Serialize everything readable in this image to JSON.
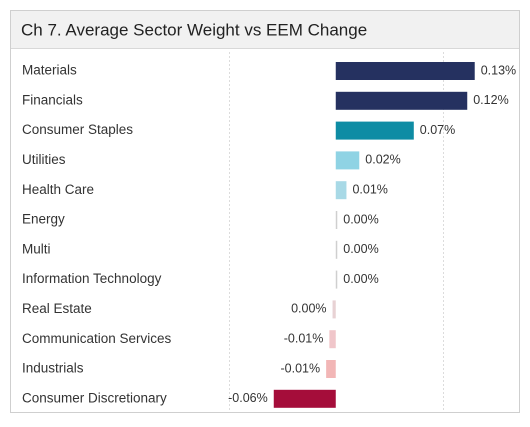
{
  "chart_data": {
    "type": "bar",
    "orientation": "horizontal",
    "title": "Ch 7. Average Sector Weight vs EEM Change",
    "categories": [
      "Materials",
      "Financials",
      "Consumer Staples",
      "Utilities",
      "Health Care",
      "Energy",
      "Multi",
      "Information Technology",
      "Real Estate",
      "Communication Services",
      "Industrials",
      "Consumer Discretionary"
    ],
    "values": [
      0.13,
      0.123,
      0.073,
      0.022,
      0.01,
      0.001,
      0.001,
      0.001,
      -0.003,
      -0.006,
      -0.009,
      -0.058
    ],
    "value_labels": [
      "0.13%",
      "0.12%",
      "0.07%",
      "0.02%",
      "0.01%",
      "0.00%",
      "0.00%",
      "0.00%",
      "0.00%",
      "-0.01%",
      "-0.01%",
      "-0.06%"
    ],
    "colors": [
      "#253160",
      "#253160",
      "#0e8ca4",
      "#8fd3e4",
      "#a8d9e6",
      "#cfcfcf",
      "#cfcfcf",
      "#cfcfcf",
      "#e8d2d4",
      "#f0c6ca",
      "#f2b6b6",
      "#a50d3a"
    ],
    "xlim": [
      -0.127,
      0.163
    ],
    "xticks": [
      -0.1,
      0.1
    ],
    "grid": true
  }
}
